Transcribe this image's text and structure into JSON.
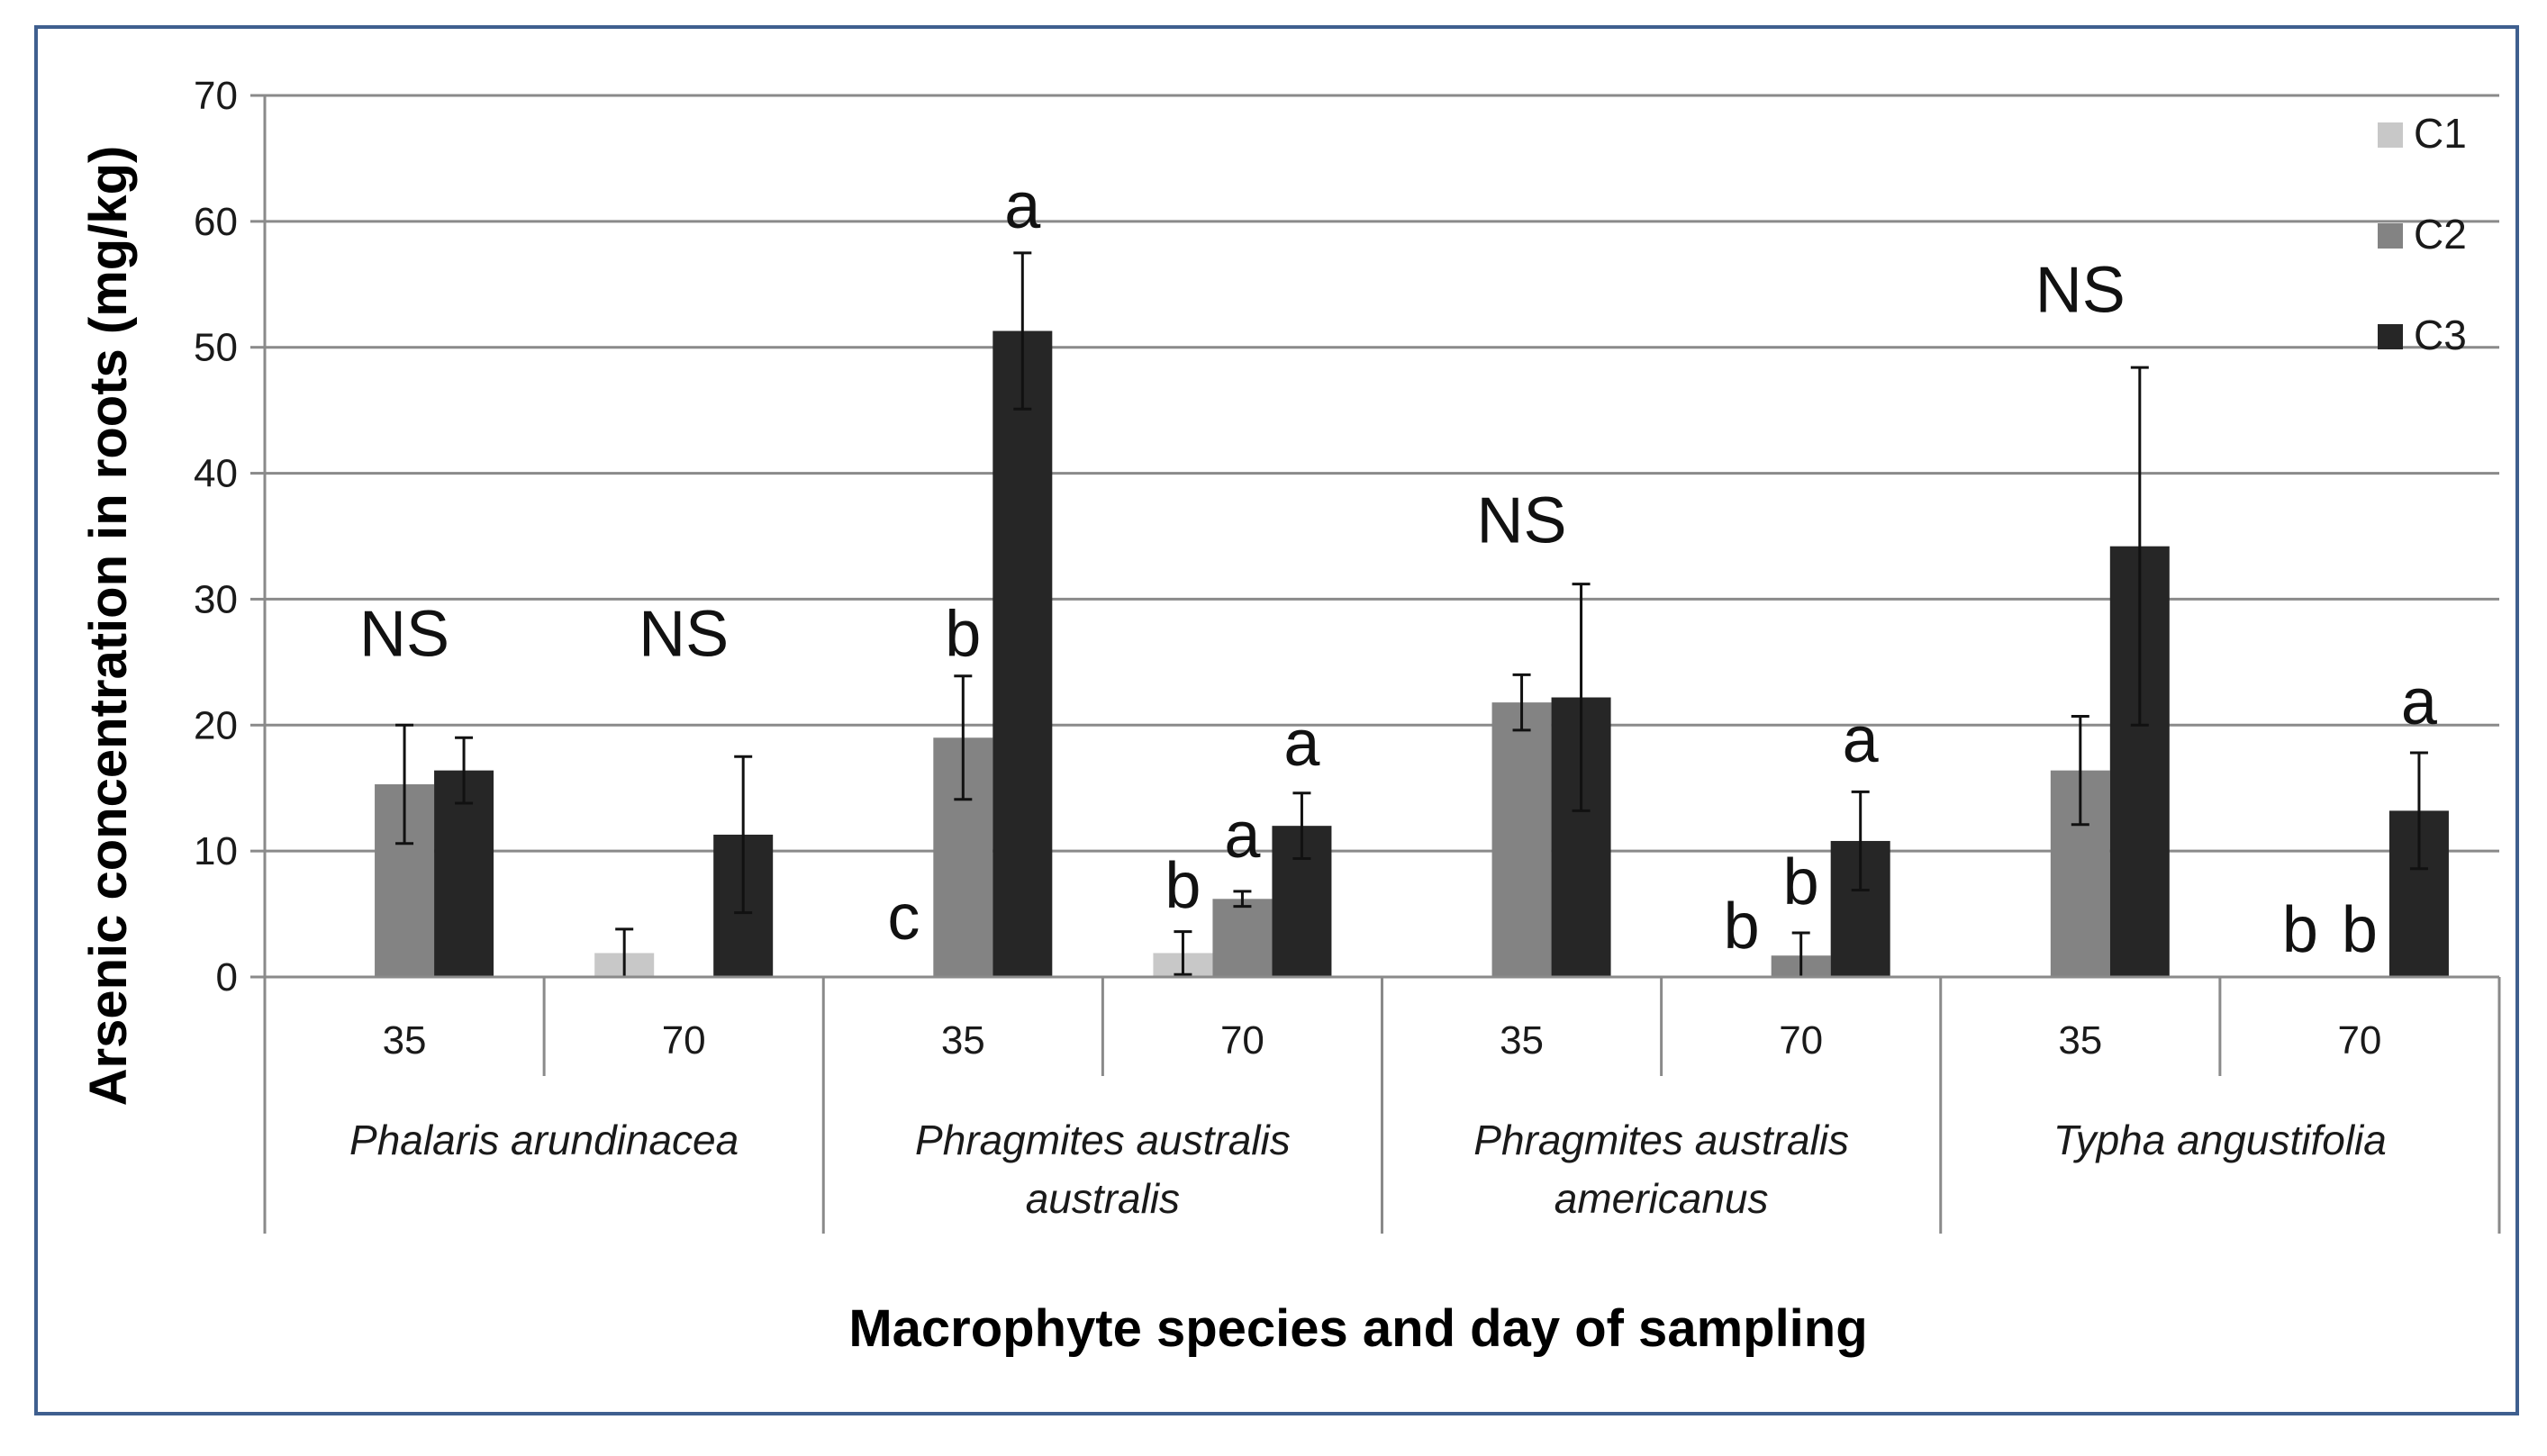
{
  "colors": {
    "C1": "#c8c8c8",
    "C2": "#838383",
    "C3": "#262626",
    "grid": "#8a8a8a",
    "frame": "#3f5f8f"
  },
  "chart_data": {
    "type": "bar",
    "title": "",
    "xlabel": "Macrophyte species and day of sampling",
    "ylabel": "Arsenic concentration in roots (mg/kg)",
    "ylim": [
      0,
      70
    ],
    "yticks": [
      "0",
      "10",
      "20",
      "30",
      "40",
      "50",
      "60",
      "70"
    ],
    "grid": true,
    "legend_position": "top-right",
    "groups": [
      {
        "species": [
          "Phalaris arundinacea"
        ],
        "days": [
          "35",
          "70"
        ]
      },
      {
        "species": [
          "Phragmites australis",
          "australis"
        ],
        "days": [
          "35",
          "70"
        ]
      },
      {
        "species": [
          "Phragmites australis",
          "americanus"
        ],
        "days": [
          "35",
          "70"
        ]
      },
      {
        "species": [
          "Typha angustifolia"
        ],
        "days": [
          "35",
          "70"
        ]
      }
    ],
    "series": [
      {
        "name": "C1",
        "values": [
          0,
          1.9,
          0,
          1.9,
          0,
          0,
          0,
          0
        ],
        "errors": [
          0,
          1.9,
          0,
          1.7,
          0,
          0,
          0,
          0
        ]
      },
      {
        "name": "C2",
        "values": [
          15.3,
          0,
          19.0,
          6.2,
          21.8,
          1.7,
          16.4,
          0
        ],
        "errors": [
          4.7,
          0,
          4.9,
          0.6,
          2.2,
          1.8,
          4.3,
          0
        ]
      },
      {
        "name": "C3",
        "values": [
          16.4,
          11.3,
          51.3,
          12.0,
          22.2,
          10.8,
          34.2,
          13.2
        ],
        "errors": [
          2.6,
          6.2,
          6.2,
          2.6,
          9.0,
          3.9,
          14.2,
          4.6
        ]
      }
    ],
    "annotations": [
      {
        "text": "NS",
        "cat": 0,
        "slot": 1,
        "y": 25.5
      },
      {
        "text": "NS",
        "cat": 1,
        "slot": 1,
        "y": 25.5
      },
      {
        "text": "c",
        "cat": 2,
        "slot": 0,
        "y": 3
      },
      {
        "text": "b",
        "cat": 2,
        "slot": 1,
        "y": 25.5
      },
      {
        "text": "a",
        "cat": 2,
        "slot": 2,
        "y": 59.5
      },
      {
        "text": "b",
        "cat": 3,
        "slot": 0,
        "y": 5.5
      },
      {
        "text": "a",
        "cat": 3,
        "slot": 1,
        "y": 9.5
      },
      {
        "text": "a",
        "cat": 3,
        "slot": 2,
        "y": 16.8
      },
      {
        "text": "NS",
        "cat": 4,
        "slot": 1,
        "y": 34.5
      },
      {
        "text": "b",
        "cat": 5,
        "slot": 0,
        "y": 2.3
      },
      {
        "text": "b",
        "cat": 5,
        "slot": 1,
        "y": 5.8
      },
      {
        "text": "a",
        "cat": 5,
        "slot": 2,
        "y": 17.1
      },
      {
        "text": "NS",
        "cat": 6,
        "slot": 1,
        "y": 52.8
      },
      {
        "text": "b",
        "cat": 7,
        "slot": 0,
        "y": 2
      },
      {
        "text": "b",
        "cat": 7,
        "slot": 1,
        "y": 2
      },
      {
        "text": "a",
        "cat": 7,
        "slot": 2,
        "y": 20.1
      }
    ]
  }
}
